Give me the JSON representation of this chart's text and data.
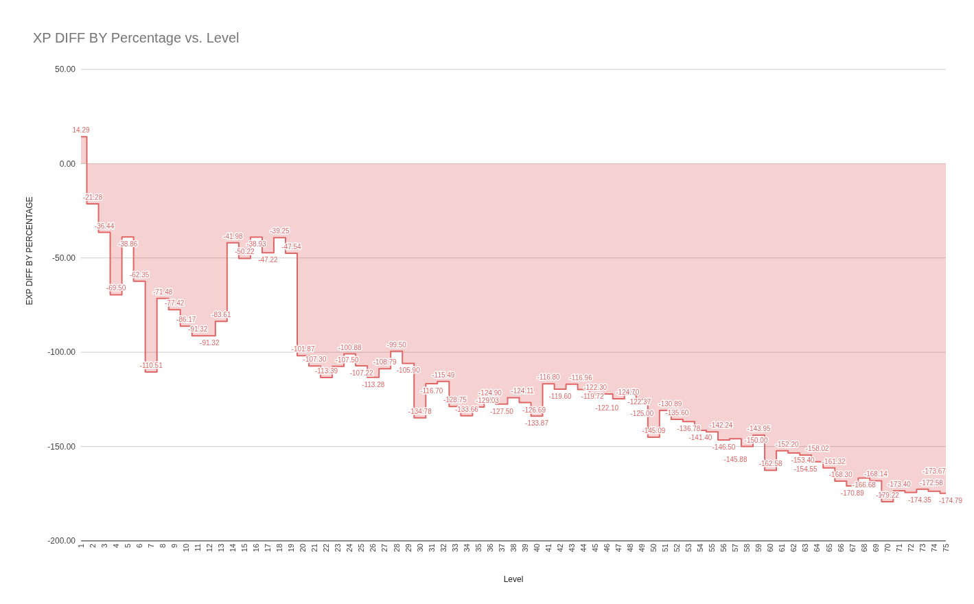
{
  "chart_data": {
    "type": "step",
    "title": "XP DIFF BY Percentage vs. Level",
    "xlabel": "Level",
    "ylabel": "EXP DIFF BY PERCENTAGE",
    "categories": [
      "1",
      "2",
      "3",
      "4",
      "5",
      "6",
      "7",
      "8",
      "9",
      "10",
      "11",
      "12",
      "13",
      "14",
      "15",
      "16",
      "17",
      "18",
      "19",
      "20",
      "21",
      "22",
      "23",
      "24",
      "25",
      "26",
      "27",
      "28",
      "29",
      "30",
      "31",
      "32",
      "33",
      "34",
      "35",
      "36",
      "37",
      "38",
      "39",
      "40",
      "41",
      "42",
      "43",
      "44",
      "45",
      "46",
      "47",
      "48",
      "49",
      "50",
      "51",
      "52",
      "53",
      "54",
      "55",
      "56",
      "57",
      "58",
      "59",
      "60",
      "61",
      "62",
      "63",
      "64",
      "65",
      "66",
      "67",
      "68",
      "69",
      "70",
      "71",
      "72",
      "73",
      "74",
      "75"
    ],
    "series": [
      {
        "color": "#e06666",
        "values": [
          14.29,
          -21.28,
          -36.44,
          -69.5,
          -38.86,
          -62.35,
          -110.51,
          -71.48,
          -77.42,
          -86.17,
          -91.32,
          -91.32,
          -83.61,
          -41.98,
          -50.22,
          -38.93,
          -47.22,
          -39.25,
          -47.54,
          -101.87,
          -107.3,
          -113.39,
          -107.5,
          -100.88,
          -107.22,
          -113.28,
          -108.79,
          -99.5,
          -105.9,
          -134.78,
          -116.7,
          -115.49,
          -128.75,
          -133.66,
          -129.03,
          -124.9,
          -127.5,
          -124.11,
          -126.69,
          -133.87,
          -116.8,
          -119.6,
          -116.96,
          -119.72,
          -122.3,
          -122.1,
          -124.7,
          -122.37,
          -125.0,
          -145.09,
          -130.89,
          -135.6,
          -136.78,
          -141.4,
          -142.24,
          -146.5,
          -145.88,
          -150.0,
          -143.95,
          -162.58,
          -152.2,
          -153.4,
          -154.55,
          -158.02,
          -161.32,
          -168.3,
          -170.89,
          -166.68,
          -168.14,
          -179.22,
          -173.4,
          -174.35,
          -172.58,
          -173.67,
          -174.79
        ],
        "value_labels": [
          "14.29",
          "-21.28",
          "-36.44",
          "-69.50",
          "-38.86",
          "-62.35",
          "-110.51",
          "-71.48",
          "-77.42",
          "-86.17",
          "-91.32",
          "-91.32",
          "-83.61",
          "-41.98",
          "-50.22",
          "-38.93",
          "-47.22",
          "-39.25",
          "-47.54",
          "-101.87",
          "-107.30",
          "-113.39",
          "-107.50",
          "-100.88",
          "-107.22",
          "-113.28",
          "-108.79",
          "-99.50",
          "-105.90",
          "-134.78",
          "-116.70",
          "-115.49",
          "-128.75",
          "-133.66",
          "-129.03",
          "-124.90",
          "-127.50",
          "-124.11",
          "-126.69",
          "-133.87",
          "-116.80",
          "-119.60",
          "-116.96",
          "-119.72",
          "-122.30",
          "-122.10",
          "-124.70",
          "-122.37",
          "-125.00",
          "-145.09",
          "-130.89",
          "-135.60",
          "-136.78",
          "-141.40",
          "-142.24",
          "-146.50",
          "-145.88",
          "-150.00",
          "-143.95",
          "-162.58",
          "-152.20",
          "-153.40",
          "-154.55",
          "-158.02",
          "-161.32",
          "-168.30",
          "-170.89",
          "-166.68",
          "-168.14",
          "-179.22",
          "-173.40",
          "-174.35",
          "-172.58",
          "-173.67",
          "-174.79"
        ]
      }
    ],
    "ylim": [
      -200,
      50
    ],
    "yticks": [
      {
        "value": -200,
        "label": "-200.00"
      },
      {
        "value": -150,
        "label": "-150.00"
      },
      {
        "value": -100,
        "label": "-100.00"
      },
      {
        "value": -50,
        "label": "-50.00"
      },
      {
        "value": 0,
        "label": "0.00"
      },
      {
        "value": 50,
        "label": "50.00"
      }
    ],
    "grid": "y",
    "legend": false
  }
}
